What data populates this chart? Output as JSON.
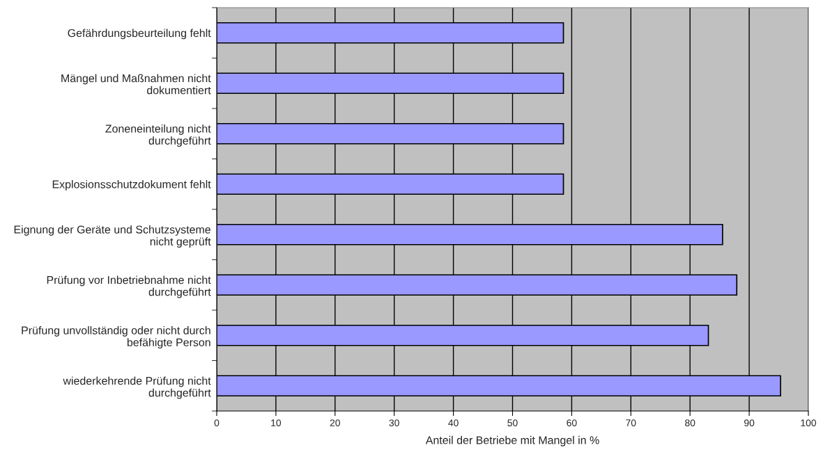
{
  "chart_data": {
    "type": "bar",
    "orientation": "horizontal",
    "xlabel": "Anteil der Betriebe mit Mangel in %",
    "categories": [
      "Gefährdungsbeurteilung fehlt",
      "Mängel und Maßnahmen nicht dokumentiert",
      "Zoneneinteilung nicht durchgeführt",
      "Explosionsschutzdokument fehlt",
      "Eignung der Geräte und Schutzsysteme nicht geprüft",
      "Prüfung vor Inbetriebnahme nicht durchgeführt",
      "Prüfung unvollständig oder nicht durch befähigte Person",
      "wiederkehrende Prüfung nicht durchgeführt"
    ],
    "values": [
      58.6,
      58.6,
      58.6,
      58.6,
      85.5,
      87.9,
      83.1,
      95.3
    ],
    "color": "#9999ff",
    "xlim": [
      0,
      100
    ],
    "xticks": [
      0,
      10,
      20,
      30,
      40,
      50,
      60,
      70,
      80,
      90,
      100
    ],
    "grid": "x",
    "legend": false
  }
}
